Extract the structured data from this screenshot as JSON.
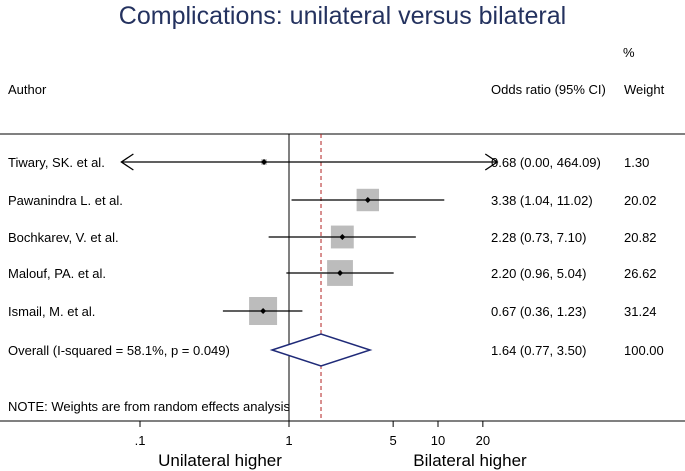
{
  "chart_data": {
    "type": "forest",
    "title": "Complications: unilateral versus bilateral",
    "header": {
      "author": "Author",
      "ci": "Odds ratio (95% CI)",
      "weight_pct": "%",
      "weight": "Weight"
    },
    "studies": [
      {
        "author": "Tiwary, SK. et al.",
        "or": 0.68,
        "lo": 0.0,
        "hi": 464.09,
        "weight": 1.3,
        "ci_text": "0.68 (0.00, 464.09)",
        "weight_text": "1.30"
      },
      {
        "author": "Pawanindra L. et al.",
        "or": 3.38,
        "lo": 1.04,
        "hi": 11.02,
        "weight": 20.02,
        "ci_text": "3.38 (1.04, 11.02)",
        "weight_text": "20.02"
      },
      {
        "author": "Bochkarev, V. et al.",
        "or": 2.28,
        "lo": 0.73,
        "hi": 7.1,
        "weight": 20.82,
        "ci_text": "2.28 (0.73, 7.10)",
        "weight_text": "20.82"
      },
      {
        "author": "Malouf, PA. et al.",
        "or": 2.2,
        "lo": 0.96,
        "hi": 5.04,
        "weight": 26.62,
        "ci_text": "2.20 (0.96, 5.04)",
        "weight_text": "26.62"
      },
      {
        "author": "Ismail, M. et al.",
        "or": 0.67,
        "lo": 0.36,
        "hi": 1.23,
        "weight": 31.24,
        "ci_text": "0.67 (0.36, 1.23)",
        "weight_text": "31.24"
      }
    ],
    "overall": {
      "label": "Overall  (I-squared = 58.1%, p = 0.049)",
      "or": 1.64,
      "lo": 0.77,
      "hi": 3.5,
      "ci_text": "1.64 (0.77, 3.50)",
      "weight_text": "100.00"
    },
    "note": "NOTE: Weights are from random effects analysis",
    "x_scale": "log",
    "xlim": [
      0.075,
      25
    ],
    "x_ticks": [
      {
        "value": 0.1,
        "label": ".1"
      },
      {
        "value": 1,
        "label": "1"
      },
      {
        "value": 5,
        "label": "5"
      },
      {
        "value": 10,
        "label": "10"
      },
      {
        "value": 20,
        "label": "20"
      }
    ],
    "null_line": 1,
    "left_label": "Unilateral higher",
    "right_label": "Bilateral higher",
    "colors": {
      "title": "#24325f",
      "box": "#bcbcbc",
      "diamond": "#1f2a78",
      "overall_line": "#b22222",
      "text": "#000000"
    }
  }
}
